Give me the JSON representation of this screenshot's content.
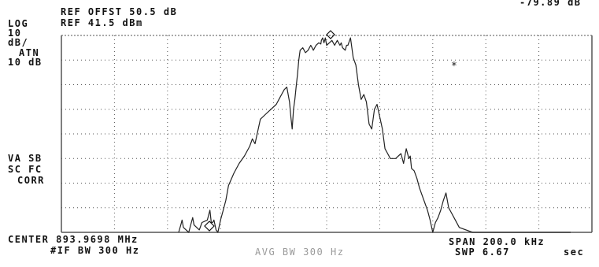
{
  "header": {
    "ref_offset": "REF OFFST 50.5 dB",
    "ref_level": "REF 41.5 dBm",
    "marker_readout": "-79.89 dB"
  },
  "left_labels": {
    "scale_log": "LOG",
    "scale_div": "10",
    "scale_unit": "dB/",
    "atten_label": "ATN",
    "atten_value": "10 dB",
    "va_sb": "VA SB",
    "sc_fc": "SC FC",
    "corr": "CORR"
  },
  "footer": {
    "center": "CENTER 893.9698 MHz",
    "if_bw": "#IF BW 300 Hz",
    "avg_bw": "AVG BW 300 Hz",
    "span": "SPAN 200.0 kHz",
    "sweep_label": "SWP 6.67",
    "sweep_unit": "sec"
  },
  "colors": {
    "trace": "#222222",
    "grid": "#555555",
    "background": "#ffffff"
  },
  "chart_data": {
    "type": "line",
    "xlabel": "",
    "ylabel": "",
    "xlim": [
      -100,
      100
    ],
    "ylim": [
      -80,
      0
    ],
    "grid": true,
    "series": [
      {
        "x": [
          -55.8,
          -55,
          -54.5,
          -54,
          -52,
          -51,
          -50.5,
          -50,
          -48,
          -47,
          -45,
          -44,
          -43.5,
          -43,
          -42.5,
          -41.7,
          -41,
          -40,
          -39,
          -38,
          -37,
          -35,
          -33,
          -31,
          -29,
          -28,
          -27,
          -26,
          -25,
          -23,
          -21,
          -19,
          -18,
          -17,
          -16,
          -15,
          -14,
          -13.5,
          -13,
          -12.5,
          -12,
          -11.5,
          -11,
          -10.5,
          -10,
          -9,
          -8,
          -7,
          -6,
          -5.5,
          -5,
          -4,
          -3,
          -2.2,
          -2,
          -1.5,
          -1,
          -0.5,
          0,
          1,
          2,
          3,
          4,
          5,
          5.5,
          6,
          7,
          7.5,
          8,
          9,
          10,
          11,
          12,
          13,
          14,
          15,
          16,
          17,
          18,
          19,
          20,
          21,
          22,
          23,
          24,
          26,
          28,
          29,
          30,
          31,
          31.5,
          32,
          33,
          34,
          35,
          36,
          37,
          38,
          39,
          40,
          41,
          42,
          43,
          44,
          45,
          46,
          47,
          48,
          50,
          55,
          65,
          75,
          85,
          92
        ],
        "values": [
          -80,
          -77,
          -75,
          -78,
          -80,
          -76,
          -74,
          -77,
          -79,
          -76,
          -75,
          -71,
          -76,
          -76,
          -75,
          -79,
          -80,
          -75,
          -71,
          -67,
          -61,
          -56,
          -52,
          -49,
          -45,
          -42,
          -44,
          -39,
          -34,
          -32,
          -30,
          -28,
          -26,
          -24,
          -22,
          -21,
          -27,
          -33,
          -38,
          -30,
          -26,
          -21,
          -16,
          -10,
          -6,
          -5,
          -7,
          -6,
          -4,
          -5,
          -6,
          -4,
          -3,
          -3.5,
          -2,
          -1,
          -3,
          -1,
          -4,
          -3,
          -2,
          -4,
          -2,
          -4,
          -3,
          -5,
          -6,
          -4,
          -4,
          -1,
          -9,
          -12,
          -20,
          -26,
          -24,
          -27,
          -36,
          -38,
          -30,
          -28,
          -33,
          -38,
          -46,
          -48,
          -50,
          -50,
          -48,
          -52,
          -46,
          -50,
          -49,
          -54,
          -55,
          -58,
          -62,
          -65,
          -68,
          -71,
          -75,
          -80,
          -76,
          -74,
          -71,
          -67,
          -64,
          -70,
          -72,
          -74,
          -78,
          -80,
          -80,
          -80,
          -80,
          -80
        ]
      }
    ]
  }
}
